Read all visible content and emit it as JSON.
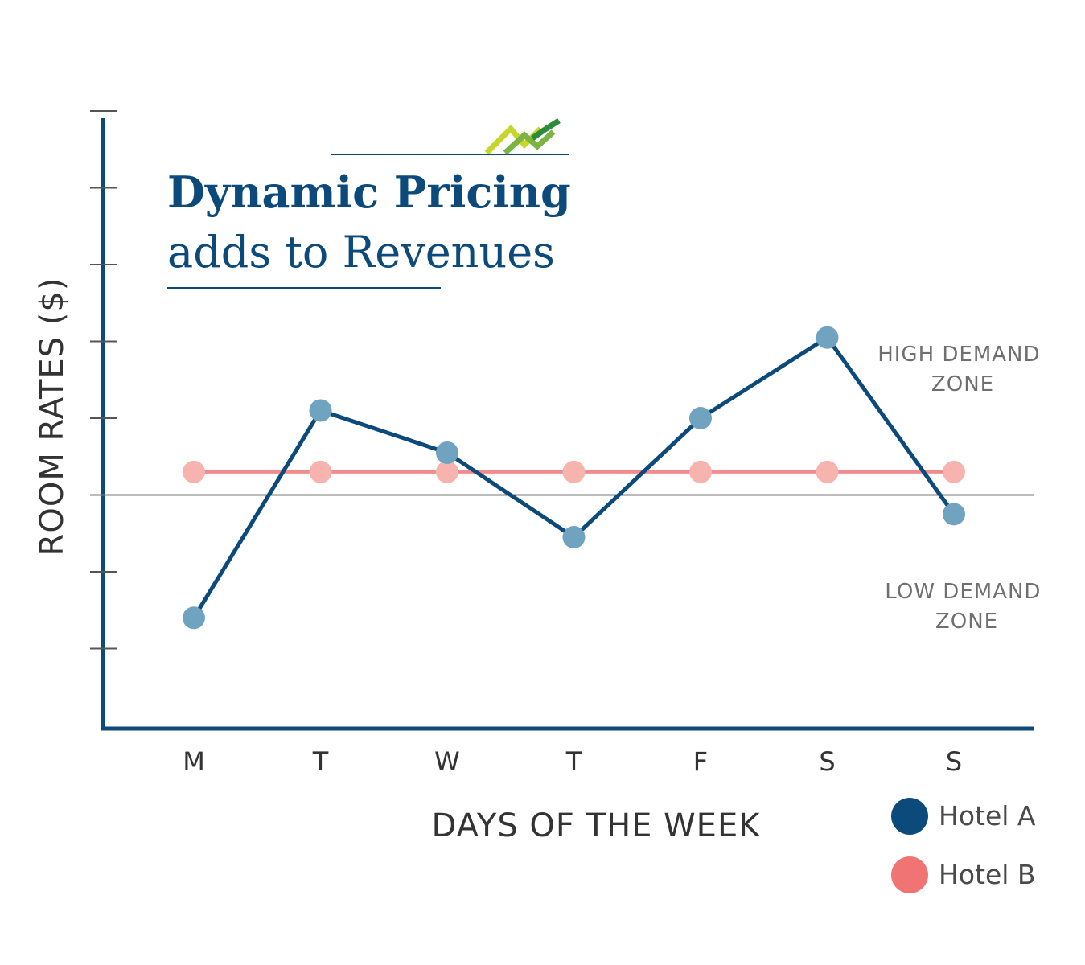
{
  "chart_data": {
    "type": "line",
    "title": "Dynamic Pricing",
    "subtitle": "adds to Revenues",
    "xlabel": "DAYS OF THE WEEK",
    "ylabel": "ROOM RATES ($)",
    "categories": [
      "M",
      "T",
      "W",
      "T",
      "F",
      "S",
      "S"
    ],
    "ylim": [
      0,
      8
    ],
    "ytick_count": 8,
    "grid": false,
    "legend_position": "bottom-right",
    "reference_line": {
      "value": 3
    },
    "zones": {
      "high": [
        "HIGH DEMAND",
        "ZONE"
      ],
      "low": [
        "LOW DEMAND",
        "ZONE"
      ]
    },
    "series": [
      {
        "name": "Hotel A",
        "values": [
          1.4,
          4.1,
          3.55,
          2.45,
          4.0,
          5.05,
          2.75
        ],
        "line_color": "#0b4a7a",
        "marker_color": "#6fa3bf"
      },
      {
        "name": "Hotel B",
        "values": [
          3.3,
          3.3,
          3.3,
          3.3,
          3.3,
          3.3,
          3.3
        ],
        "line_color": "#f28b8b",
        "marker_color": "#f7b3ad"
      }
    ],
    "legend": [
      {
        "label": "Hotel A",
        "color": "#0b4a7a"
      },
      {
        "label": "Hotel B",
        "color": "#f07474"
      }
    ]
  }
}
